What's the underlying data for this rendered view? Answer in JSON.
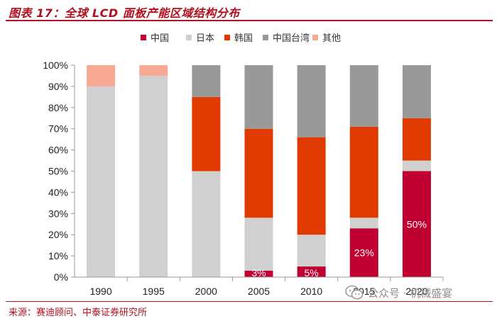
{
  "header": {
    "title": "图表 17：全球 LCD 面板产能区域结构分布"
  },
  "footer": {
    "source": "来源：赛迪顾问、中泰证券研究所"
  },
  "watermark": {
    "text": "公众号 · 机械盛宴",
    "icon": "wechat-icon"
  },
  "chart_data": {
    "type": "bar",
    "stacked": true,
    "categories": [
      "1990",
      "1995",
      "2000",
      "2005",
      "2010",
      "2015",
      "2020"
    ],
    "series": [
      {
        "name": "中国",
        "color": "#c00030",
        "values": [
          0,
          0,
          0,
          3,
          5,
          23,
          50
        ]
      },
      {
        "name": "日本",
        "color": "#d0d0d0",
        "values": [
          90,
          95,
          50,
          25,
          15,
          5,
          5
        ]
      },
      {
        "name": "韩国",
        "color": "#e03a00",
        "values": [
          0,
          0,
          35,
          42,
          46,
          43,
          20
        ]
      },
      {
        "name": "中国台湾",
        "color": "#999999",
        "values": [
          0,
          0,
          15,
          30,
          34,
          29,
          25
        ]
      },
      {
        "name": "其他",
        "color": "#f7a994",
        "values": [
          10,
          5,
          0,
          0,
          0,
          0,
          0
        ]
      }
    ],
    "data_labels": [
      {
        "category": "2005",
        "series": "中国",
        "text": "3%"
      },
      {
        "category": "2010",
        "series": "中国",
        "text": "5%"
      },
      {
        "category": "2015",
        "series": "中国",
        "text": "23%"
      },
      {
        "category": "2020",
        "series": "中国",
        "text": "50%"
      }
    ],
    "yticks": [
      "0%",
      "10%",
      "20%",
      "30%",
      "40%",
      "50%",
      "60%",
      "70%",
      "80%",
      "90%",
      "100%"
    ],
    "ylim": [
      0,
      100
    ],
    "legend": "top",
    "grid": false
  }
}
